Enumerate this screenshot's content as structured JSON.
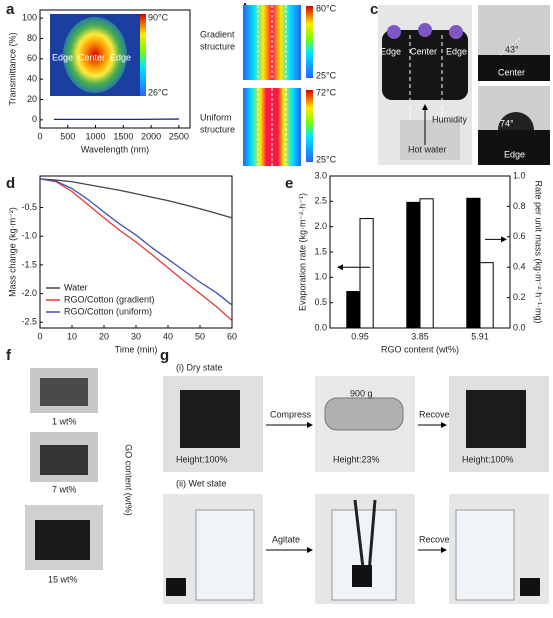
{
  "panels": [
    "a",
    "b",
    "c",
    "d",
    "e",
    "f",
    "g"
  ],
  "chart_data": [
    {
      "type": "line",
      "xlabel": "Wavelength (nm)",
      "ylabel": "Transmittance (%)",
      "x": [
        250,
        500,
        750,
        1000,
        1250,
        1500,
        1750,
        2000,
        2250,
        2500
      ],
      "series": [
        {
          "color": "#1a237e",
          "values": [
            0.5,
            0.5,
            0.5,
            0.5,
            0.5,
            0.5,
            0.5,
            0.6,
            0.7,
            0.8
          ]
        }
      ],
      "xlim": [
        0,
        2700
      ],
      "ylim": [
        -8,
        108
      ],
      "xticks": [
        0,
        500,
        1000,
        1500,
        2000,
        2500
      ],
      "yticks": [
        0,
        20,
        40,
        60,
        80,
        100
      ],
      "inset": {
        "max": "90°C",
        "min": "26°C",
        "labels": [
          "Edge",
          "Center",
          "Edge"
        ]
      }
    },
    {
      "type": "line",
      "xlabel": "Time (min)",
      "ylabel": "Mass change (kg·m⁻²)",
      "x": [
        0,
        5,
        10,
        15,
        20,
        25,
        30,
        35,
        40,
        45,
        50,
        55,
        60
      ],
      "series": [
        {
          "name": "Water",
          "color": "#444444",
          "values": [
            0,
            -0.02,
            -0.05,
            -0.1,
            -0.15,
            -0.2,
            -0.26,
            -0.32,
            -0.38,
            -0.45,
            -0.52,
            -0.6,
            -0.68
          ]
        },
        {
          "name": "RGO/Cotton (gradient)",
          "color": "#e53935",
          "values": [
            0,
            -0.05,
            -0.22,
            -0.45,
            -0.68,
            -0.9,
            -1.1,
            -1.32,
            -1.55,
            -1.78,
            -2.0,
            -2.22,
            -2.47
          ]
        },
        {
          "name": "RGO/Cotton (uniform)",
          "color": "#3f51b5",
          "values": [
            0,
            -0.04,
            -0.17,
            -0.36,
            -0.58,
            -0.79,
            -0.98,
            -1.2,
            -1.4,
            -1.6,
            -1.8,
            -1.98,
            -2.2
          ]
        }
      ],
      "xlim": [
        0,
        60
      ],
      "ylim": [
        -2.6,
        0.05
      ],
      "xticks": [
        0,
        10,
        20,
        30,
        40,
        50,
        60
      ],
      "yticks": [
        -0.5,
        {
          "value": -1,
          "label": "-1.0"
        },
        -1.5,
        {
          "value": -2,
          "label": "-2.0"
        },
        -2.5
      ],
      "legend": "lower-left"
    },
    {
      "type": "bar",
      "xlabel": "RGO content (wt%)",
      "ylabel": "Evaporation rate (kg·m⁻²·h⁻¹)",
      "y2label": "Rate per unit mass (kg·m⁻²·h⁻¹·mg)",
      "categories": [
        "0.95",
        "3.85",
        "5.91"
      ],
      "series": [
        {
          "color": "#000000",
          "values": [
            0.72,
            2.48,
            2.56
          ]
        },
        {
          "color": "#ffffff",
          "axis": "y2",
          "values": [
            0.72,
            0.85,
            0.43
          ]
        }
      ],
      "ylim": [
        0,
        3
      ],
      "yticks": [
        {
          "value": 0,
          "label": "0.0"
        },
        0.5,
        {
          "value": 1,
          "label": "1.0"
        },
        1.5,
        {
          "value": 2,
          "label": "2.0"
        },
        2.5,
        {
          "value": 3,
          "label": "3.0"
        }
      ],
      "y2lim": [
        0,
        1
      ],
      "y2ticks": [
        {
          "value": 0,
          "label": "0.0"
        },
        0.2,
        0.4,
        0.6,
        0.8,
        {
          "value": 1,
          "label": "1.0"
        }
      ]
    }
  ],
  "panel_b": {
    "top": [
      "Gradient",
      "structure"
    ],
    "bottom": [
      "Uniform",
      "structure"
    ],
    "top_max": "80°C",
    "top_min": "25°C",
    "bottom_max": "72°C",
    "bottom_min": "25°C"
  },
  "panel_c": {
    "labels": [
      "Edge",
      "Center",
      "Edge"
    ],
    "humidity": "Humidity",
    "hot_water": "Hot water",
    "angle_center": "43°",
    "center": "Center",
    "angle_edge": "74°",
    "edge": "Edge"
  },
  "panel_f": {
    "labels": [
      "1 wt%",
      "7 wt%",
      "15 wt%"
    ],
    "axis": "GO content (wt%)"
  },
  "panel_g": {
    "dry": "(i) Dry state",
    "compress": "Compress",
    "recover1": "Recover",
    "weight": "900 g",
    "h1": "Height:100%",
    "h2": "Height:23%",
    "h3": "Height:100%",
    "wet": "(ii) Wet state",
    "agitate": "Agitate",
    "recover2": "Recover"
  }
}
